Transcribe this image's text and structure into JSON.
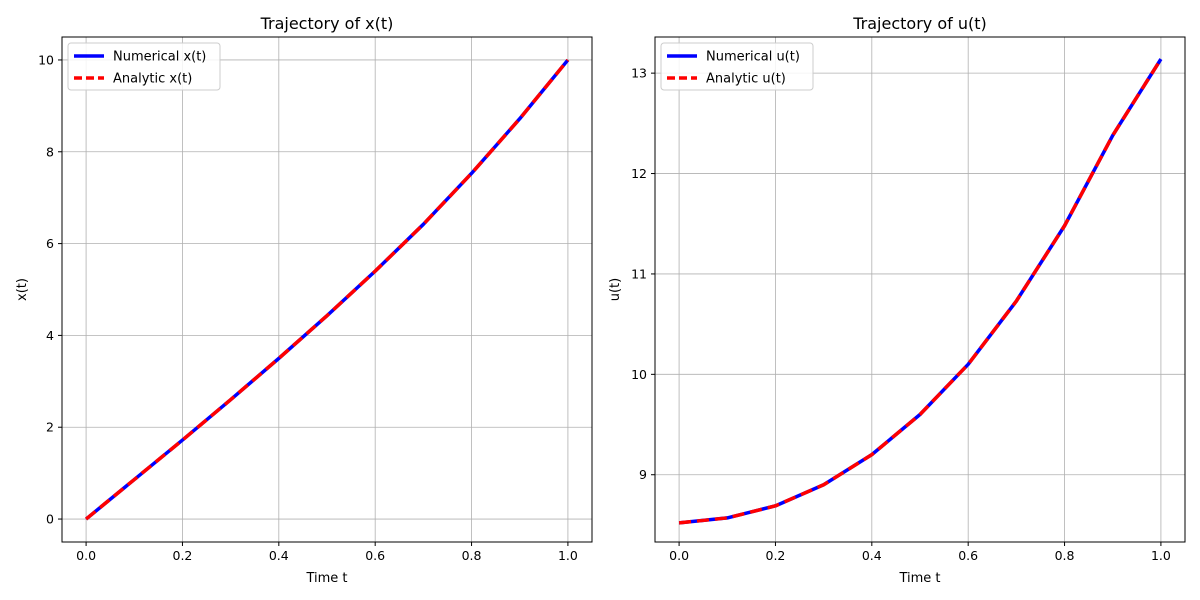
{
  "chart_data": [
    {
      "type": "line",
      "title": "Trajectory of x(t)",
      "xlabel": "Time t",
      "ylabel": "x(t)",
      "xlim": [
        -0.05,
        1.05
      ],
      "ylim": [
        -0.5,
        10.5
      ],
      "xticks": [
        0.0,
        0.2,
        0.4,
        0.6,
        0.8,
        1.0
      ],
      "xtick_labels": [
        "0.0",
        "0.2",
        "0.4",
        "0.6",
        "0.8",
        "1.0"
      ],
      "yticks": [
        0,
        2,
        4,
        6,
        8,
        10
      ],
      "ytick_labels": [
        "0",
        "2",
        "4",
        "6",
        "8",
        "10"
      ],
      "grid": true,
      "legend_position": "top-left",
      "x": [
        0.0,
        0.1,
        0.2,
        0.3,
        0.4,
        0.5,
        0.6,
        0.7,
        0.8,
        0.9,
        1.0
      ],
      "series": [
        {
          "name": "Numerical x(t)",
          "color": "#0000ff",
          "style": "solid",
          "values": [
            0.0,
            0.86,
            1.72,
            2.6,
            3.5,
            4.43,
            5.4,
            6.42,
            7.53,
            8.72,
            10.0
          ]
        },
        {
          "name": "Analytic x(t)",
          "color": "#ff0000",
          "style": "dashed",
          "values": [
            0.0,
            0.86,
            1.72,
            2.6,
            3.5,
            4.43,
            5.4,
            6.42,
            7.53,
            8.72,
            10.0
          ]
        }
      ]
    },
    {
      "type": "line",
      "title": "Trajectory of u(t)",
      "xlabel": "Time t",
      "ylabel": "u(t)",
      "xlim": [
        -0.05,
        1.05
      ],
      "ylim": [
        8.33,
        13.36
      ],
      "xticks": [
        0.0,
        0.2,
        0.4,
        0.6,
        0.8,
        1.0
      ],
      "xtick_labels": [
        "0.0",
        "0.2",
        "0.4",
        "0.6",
        "0.8",
        "1.0"
      ],
      "yticks": [
        9,
        10,
        11,
        12,
        13
      ],
      "ytick_labels": [
        "9",
        "10",
        "11",
        "12",
        "13"
      ],
      "grid": true,
      "legend_position": "top-left",
      "x": [
        0.0,
        0.1,
        0.2,
        0.3,
        0.4,
        0.5,
        0.6,
        0.7,
        0.8,
        0.9,
        1.0
      ],
      "series": [
        {
          "name": "Numerical u(t)",
          "color": "#0000ff",
          "style": "solid",
          "values": [
            8.52,
            8.57,
            8.69,
            8.9,
            9.2,
            9.6,
            10.1,
            10.73,
            11.48,
            12.38,
            13.14
          ]
        },
        {
          "name": "Analytic u(t)",
          "color": "#ff0000",
          "style": "dashed",
          "values": [
            8.52,
            8.57,
            8.69,
            8.9,
            9.2,
            9.6,
            10.1,
            10.73,
            11.48,
            12.38,
            13.14
          ]
        }
      ]
    }
  ]
}
